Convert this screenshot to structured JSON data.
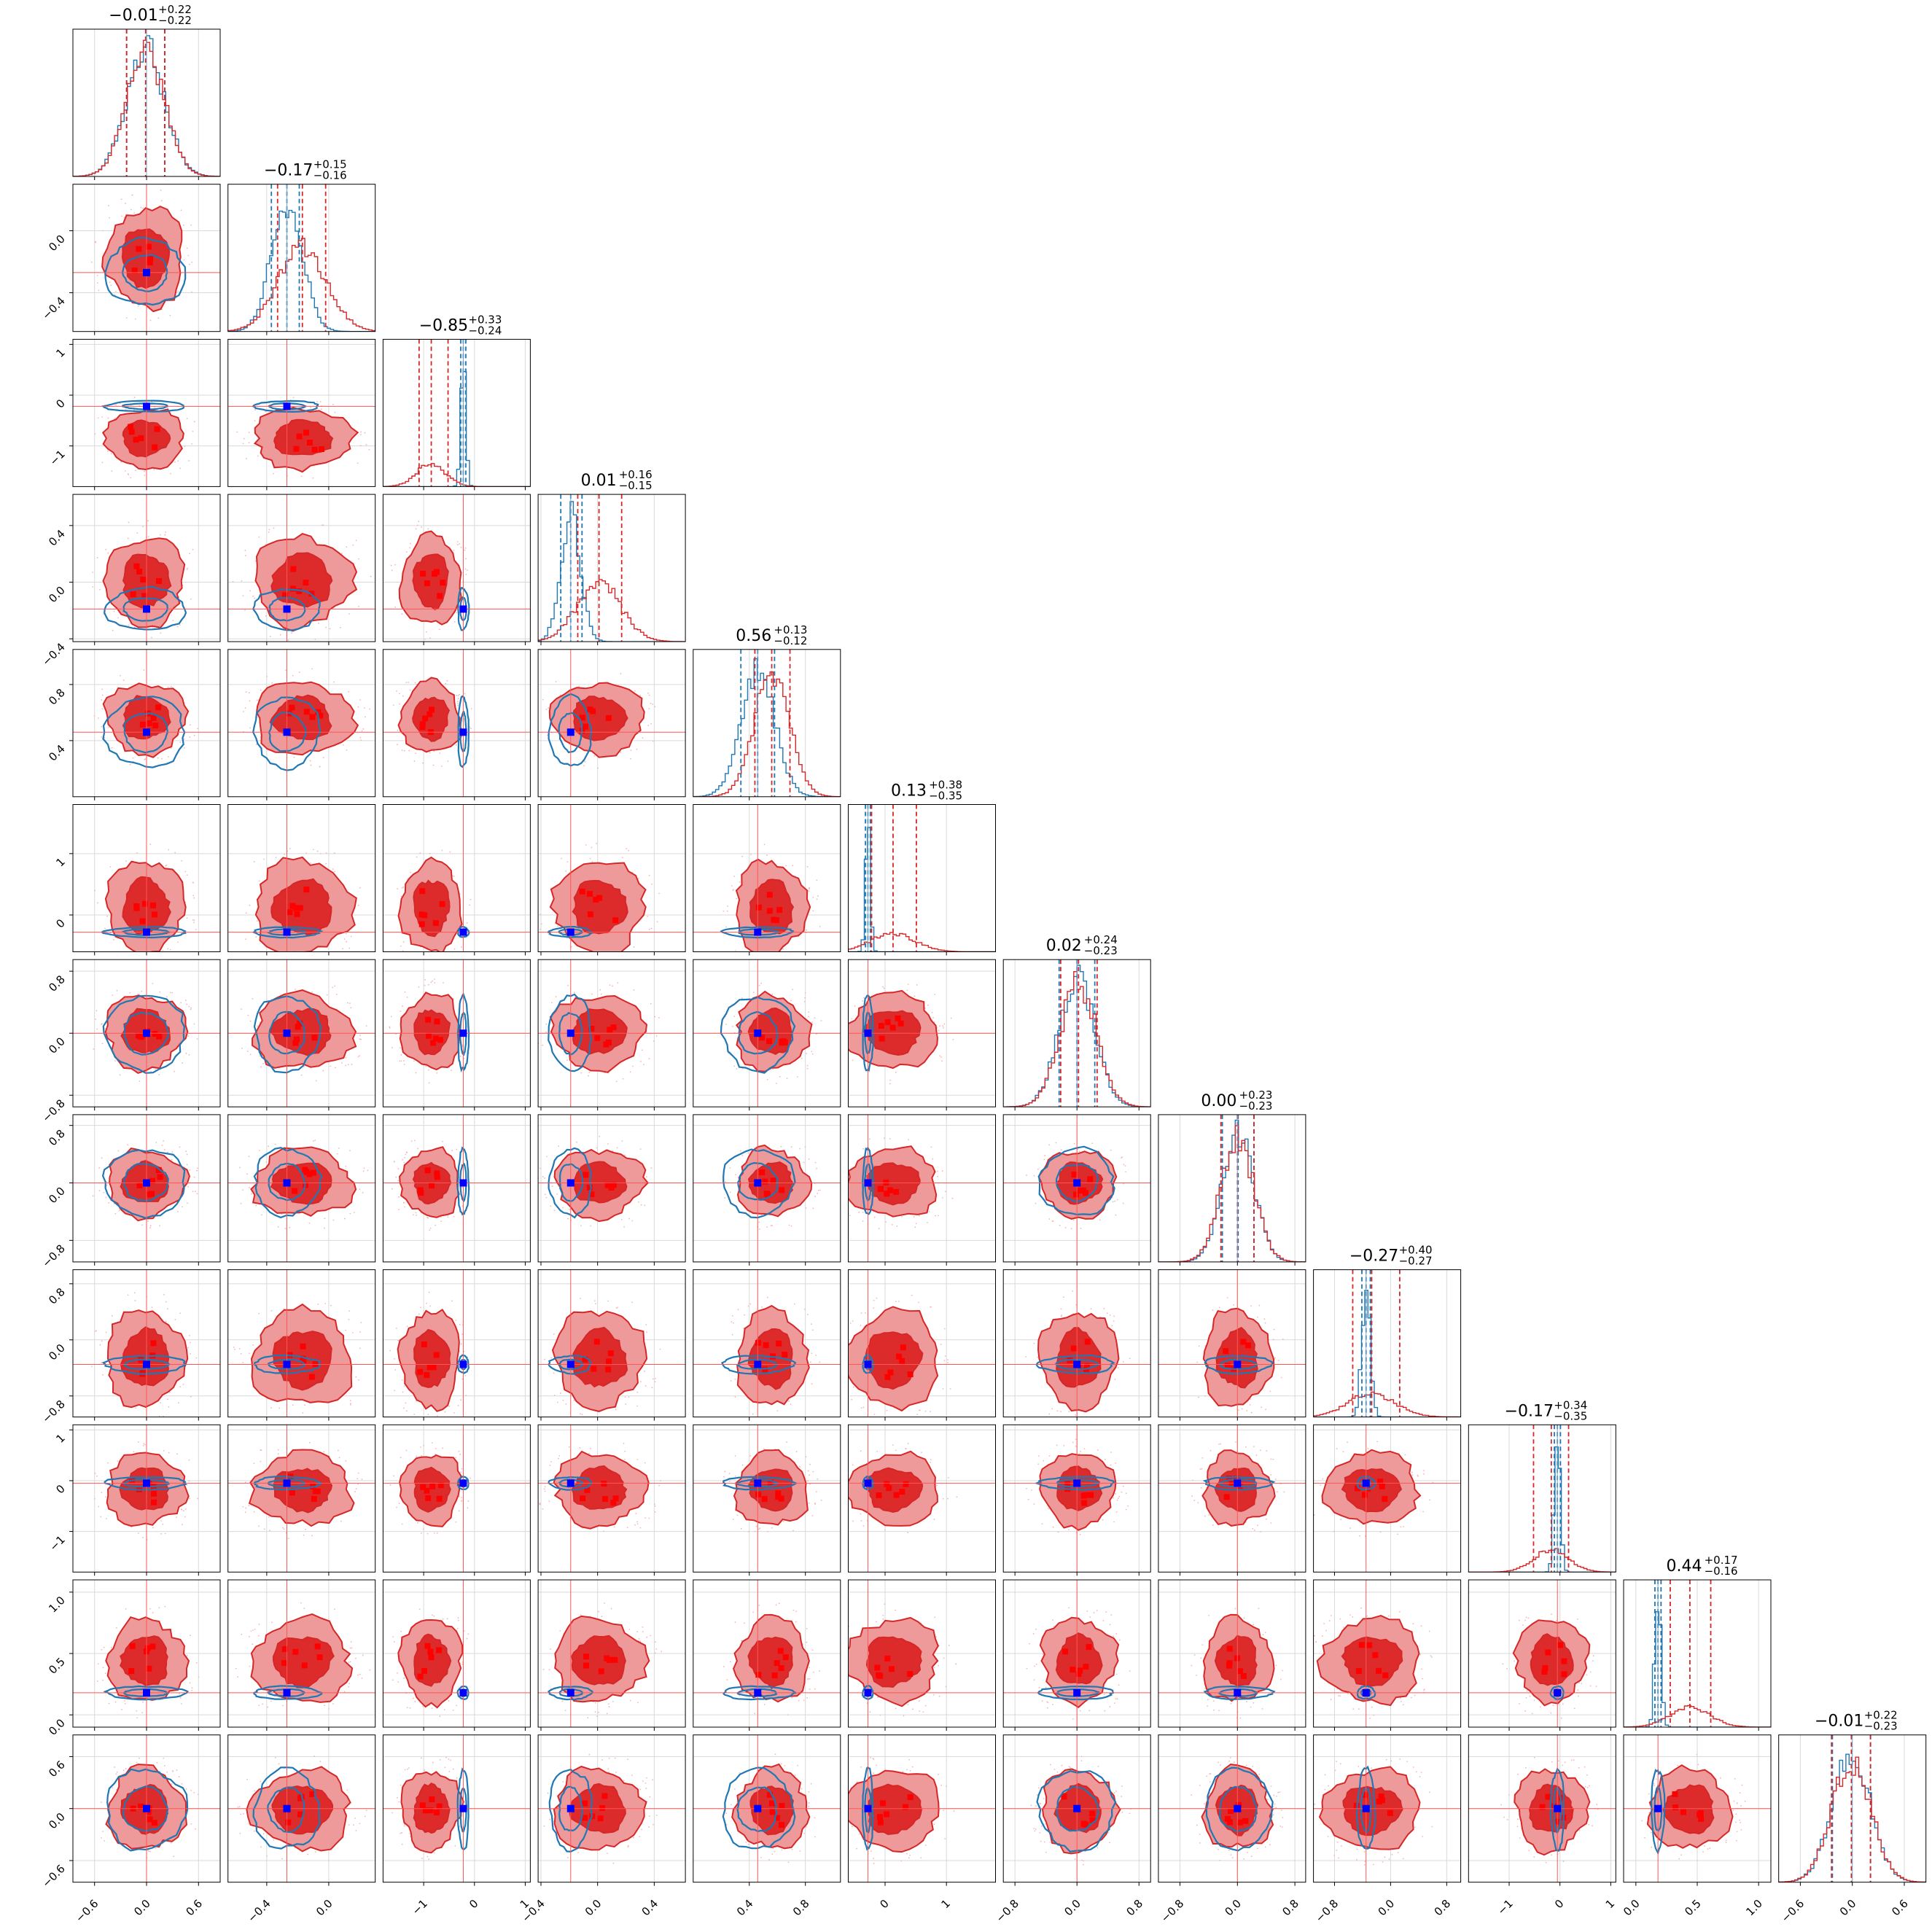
{
  "chart_data": {
    "type": "corner",
    "colors": {
      "posterior_a": "#d62728",
      "posterior_a_fill_dark": "#dd2b2b",
      "posterior_a_fill_light": "#ee9a9a",
      "posterior_b": "#1f77b4",
      "truth_marker": "#0000ff",
      "sample_marker": "#ff0000",
      "grid": "#d9d9d9"
    },
    "grid": true,
    "parameters": [
      {
        "id": "p1",
        "title": "−0.01",
        "plus": "+0.22",
        "minus": "−0.22",
        "range": [
          -0.85,
          0.85
        ],
        "truth": 0.0,
        "a_median": -0.01,
        "a_q16": -0.23,
        "a_q84": 0.21,
        "b_median": -0.01,
        "b_sigma": 0.22,
        "b_q16": -0.23,
        "b_q84": 0.21,
        "ticks": [
          -0.6,
          0.0,
          0.6
        ],
        "ticklabels": [
          "−0.6",
          "0.0",
          "0.6"
        ]
      },
      {
        "id": "p2",
        "title": "−0.17",
        "plus": "+0.15",
        "minus": "−0.16",
        "range": [
          -0.65,
          0.3
        ],
        "truth": -0.27,
        "a_median": -0.17,
        "a_q16": -0.33,
        "a_q84": -0.02,
        "b_median": -0.27,
        "b_sigma": 0.1,
        "b_q16": -0.37,
        "b_q84": -0.19,
        "ticks": [
          -0.4,
          0.0
        ],
        "ticklabels": [
          "−0.4",
          "0.0"
        ]
      },
      {
        "id": "p3",
        "title": "−0.85",
        "plus": "+0.33",
        "minus": "−0.24",
        "range": [
          -1.8,
          1.1
        ],
        "truth": -0.22,
        "a_median": -0.85,
        "a_q16": -1.09,
        "a_q84": -0.52,
        "b_median": -0.22,
        "b_sigma": 0.05,
        "b_q16": -0.27,
        "b_q84": -0.17,
        "ticks": [
          -1,
          0,
          1
        ],
        "ticklabels": [
          "−1",
          "0",
          "1"
        ]
      },
      {
        "id": "p4",
        "title": "0.01",
        "plus": "+0.16",
        "minus": "−0.15",
        "range": [
          -0.42,
          0.62
        ],
        "truth": -0.19,
        "a_median": 0.01,
        "a_q16": -0.14,
        "a_q84": 0.17,
        "b_median": -0.19,
        "b_sigma": 0.07,
        "b_q16": -0.26,
        "b_q84": -0.11,
        "ticks": [
          -0.4,
          0.0,
          0.4
        ],
        "ticklabels": [
          "−0.4",
          "0.0",
          "0.4"
        ]
      },
      {
        "id": "p5",
        "title": "0.56",
        "plus": "+0.13",
        "minus": "−0.12",
        "range": [
          0.0,
          1.05
        ],
        "truth": 0.46,
        "a_median": 0.56,
        "a_q16": 0.44,
        "a_q84": 0.69,
        "b_median": 0.46,
        "b_sigma": 0.12,
        "b_q16": 0.34,
        "b_q84": 0.58,
        "ticks": [
          0.4,
          0.8
        ],
        "ticklabels": [
          "0.4",
          "0.8"
        ]
      },
      {
        "id": "p6",
        "title": "0.13",
        "plus": "+0.38",
        "minus": "−0.35",
        "range": [
          -0.6,
          1.8
        ],
        "truth": -0.28,
        "a_median": 0.13,
        "a_q16": -0.22,
        "a_q84": 0.51,
        "b_median": -0.28,
        "b_sigma": 0.04,
        "b_q16": -0.32,
        "b_q84": -0.24,
        "ticks": [
          0,
          1
        ],
        "ticklabels": [
          "0",
          "1"
        ]
      },
      {
        "id": "p7",
        "title": "0.02",
        "plus": "+0.24",
        "minus": "−0.23",
        "range": [
          -0.95,
          0.95
        ],
        "truth": 0.0,
        "a_median": 0.02,
        "a_q16": -0.21,
        "a_q84": 0.26,
        "b_median": 0.0,
        "b_sigma": 0.23,
        "b_q16": -0.23,
        "b_q84": 0.23,
        "ticks": [
          -0.8,
          0.0,
          0.8
        ],
        "ticklabels": [
          "−0.8",
          "0.0",
          "0.8"
        ]
      },
      {
        "id": "p8",
        "title": "0.00",
        "plus": "+0.23",
        "minus": "−0.23",
        "range": [
          -1.1,
          0.95
        ],
        "truth": 0.0,
        "a_median": 0.0,
        "a_q16": -0.23,
        "a_q84": 0.23,
        "b_median": 0.01,
        "b_sigma": 0.22,
        "b_q16": -0.21,
        "b_q84": 0.23,
        "ticks": [
          -0.8,
          0.0,
          0.8
        ],
        "ticklabels": [
          "−0.8",
          "0.0",
          "0.8"
        ]
      },
      {
        "id": "p9",
        "title": "−0.27",
        "plus": "+0.40",
        "minus": "−0.27",
        "range": [
          -1.1,
          1.0
        ],
        "truth": -0.35,
        "a_median": -0.27,
        "a_q16": -0.54,
        "a_q84": 0.13,
        "b_median": -0.35,
        "b_sigma": 0.06,
        "b_q16": -0.41,
        "b_q84": -0.29,
        "ticks": [
          -0.8,
          0.0,
          0.8
        ],
        "ticklabels": [
          "−0.8",
          "0.0",
          "0.8"
        ]
      },
      {
        "id": "p10",
        "title": "−0.17",
        "plus": "+0.34",
        "minus": "−0.35",
        "range": [
          -1.8,
          1.1
        ],
        "truth": -0.05,
        "a_median": -0.17,
        "a_q16": -0.52,
        "a_q84": 0.17,
        "b_median": -0.05,
        "b_sigma": 0.06,
        "b_q16": -0.11,
        "b_q84": 0.01,
        "ticks": [
          -1,
          0,
          1
        ],
        "ticklabels": [
          "−1",
          "0",
          "1"
        ]
      },
      {
        "id": "p11",
        "title": "0.44",
        "plus": "+0.17",
        "minus": "−0.16",
        "range": [
          -0.1,
          1.1
        ],
        "truth": 0.18,
        "a_median": 0.44,
        "a_q16": 0.28,
        "a_q84": 0.61,
        "b_median": 0.18,
        "b_sigma": 0.025,
        "b_q16": 0.155,
        "b_q84": 0.205,
        "ticks": [
          0.0,
          0.5,
          1.0
        ],
        "ticklabels": [
          "0.0",
          "0.5",
          "1.0"
        ]
      },
      {
        "id": "p12",
        "title": "−0.01",
        "plus": "+0.22",
        "minus": "−0.23",
        "range": [
          -0.85,
          0.85
        ],
        "truth": 0.0,
        "a_median": -0.01,
        "a_q16": -0.24,
        "a_q84": 0.21,
        "b_median": -0.01,
        "b_sigma": 0.22,
        "b_q16": -0.23,
        "b_q84": 0.21,
        "ticks": [
          -0.6,
          0.0,
          0.6
        ],
        "ticklabels": [
          "−0.6",
          "0.0",
          "0.6"
        ]
      }
    ]
  }
}
